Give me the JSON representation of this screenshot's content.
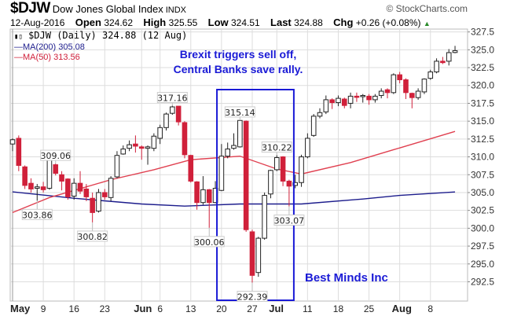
{
  "header": {
    "symbol": "$DJW",
    "name": "Dow Jones Global Index",
    "exchange": "INDX",
    "copyright": "© StockCharts.com",
    "date": "12-Aug-2016",
    "open_label": "Open",
    "open": "324.62",
    "high_label": "High",
    "high": "325.55",
    "low_label": "Low",
    "low": "324.51",
    "last_label": "Last",
    "last": "324.88",
    "chg_label": "Chg",
    "chg": "+0.26 (+0.08%)",
    "up_icon": "▲"
  },
  "legend": {
    "price": "$DJW (Daily) 324.88 (12 Aug)",
    "ma200": "MA(200) 305.08",
    "ma50": "MA(50) 313.56"
  },
  "annotations": {
    "line1": "Brexit triggers sell off,",
    "line2": "Central Banks save rally.",
    "watermark": "Best Minds Inc"
  },
  "colors": {
    "up": "#ffffff",
    "down": "#d0203a",
    "ma200": "#1c1c8c",
    "ma50": "#e04050",
    "box": "#1a1ad6",
    "grid": "#dddddd"
  },
  "chart_data": {
    "type": "candlestick",
    "ylim": [
      289.8,
      327.9
    ],
    "yticks": [
      "292.5",
      "295.0",
      "297.5",
      "300.0",
      "302.5",
      "305.0",
      "307.5",
      "310.0",
      "312.5",
      "315.0",
      "317.5",
      "320.0",
      "322.5",
      "325.0",
      "327.5"
    ],
    "xticks": [
      {
        "label": "May",
        "date": "2016-05-02",
        "bold": true
      },
      {
        "label": "9",
        "date": "2016-05-09"
      },
      {
        "label": "16",
        "date": "2016-05-16"
      },
      {
        "label": "23",
        "date": "2016-05-23"
      },
      {
        "label": "Jun",
        "date": "2016-06-01",
        "bold": true
      },
      {
        "label": "6",
        "date": "2016-06-06"
      },
      {
        "label": "13",
        "date": "2016-06-13"
      },
      {
        "label": "20",
        "date": "2016-06-20"
      },
      {
        "label": "27",
        "date": "2016-06-27"
      },
      {
        "label": "Jul",
        "date": "2016-07-01",
        "bold": true
      },
      {
        "label": "11",
        "date": "2016-07-11"
      },
      {
        "label": "18",
        "date": "2016-07-18"
      },
      {
        "label": "25",
        "date": "2016-07-25"
      },
      {
        "label": "Aug",
        "date": "2016-08-01",
        "bold": true
      },
      {
        "label": "8",
        "date": "2016-08-08"
      }
    ],
    "candles": [
      [
        "2016-05-02",
        311.8,
        312.6,
        310.8,
        312.4
      ],
      [
        "2016-05-03",
        312.6,
        313,
        308,
        308.8
      ],
      [
        "2016-05-04",
        308.6,
        308.8,
        305.5,
        306
      ],
      [
        "2016-05-05",
        306.3,
        307,
        305,
        305.5
      ],
      [
        "2016-05-06",
        305.6,
        306.2,
        303.86,
        305.8
      ],
      [
        "2016-05-09",
        305.8,
        306.5,
        305,
        305.4
      ],
      [
        "2016-05-10",
        305.6,
        310,
        305.4,
        309.8
      ],
      [
        "2016-05-11",
        308.9,
        309.06,
        307.4,
        307.7
      ],
      [
        "2016-05-12",
        307.5,
        308,
        305.3,
        306.6
      ],
      [
        "2016-05-13",
        306.9,
        307,
        304,
        304.4
      ],
      [
        "2016-05-16",
        304.5,
        307,
        304,
        306.3
      ],
      [
        "2016-05-17",
        306.3,
        308,
        304.8,
        305.2
      ],
      [
        "2016-05-18",
        305.5,
        306.2,
        303.8,
        304.4
      ],
      [
        "2016-05-19",
        304.2,
        305,
        300.82,
        302.2
      ],
      [
        "2016-05-20",
        302.4,
        305.5,
        302.2,
        305
      ],
      [
        "2016-05-23",
        305,
        305.5,
        304,
        304.4
      ],
      [
        "2016-05-24",
        304.3,
        307.3,
        303.8,
        307
      ],
      [
        "2016-05-25",
        307.2,
        310.8,
        307,
        310.2
      ],
      [
        "2016-05-26",
        310.4,
        311.6,
        310.3,
        311.1
      ],
      [
        "2016-05-27",
        311.2,
        312.3,
        310.8,
        311.7
      ],
      [
        "2016-05-31",
        311.8,
        313,
        310.6,
        311.5
      ],
      [
        "2016-06-01",
        311.4,
        311.6,
        309.6,
        311.2
      ],
      [
        "2016-06-02",
        311.2,
        311.6,
        308.9,
        311.4
      ],
      [
        "2016-06-03",
        311.2,
        313.3,
        310.8,
        312.9
      ],
      [
        "2016-06-06",
        312.6,
        314.5,
        311.8,
        314.1
      ],
      [
        "2016-06-07",
        314.1,
        316.2,
        313.7,
        316
      ],
      [
        "2016-06-08",
        316.1,
        317.16,
        315.9,
        317
      ],
      [
        "2016-06-09",
        317.1,
        317.1,
        314.4,
        314.9
      ],
      [
        "2016-06-10",
        314.8,
        315,
        309.8,
        310.3
      ],
      [
        "2016-06-13",
        310.2,
        310.3,
        306.4,
        306.6
      ],
      [
        "2016-06-14",
        306.5,
        306.6,
        302.6,
        303.6
      ],
      [
        "2016-06-15",
        303.6,
        307.3,
        303.3,
        305.4
      ],
      [
        "2016-06-16",
        305.4,
        305.5,
        300.06,
        303.6
      ],
      [
        "2016-06-17",
        303.6,
        306.6,
        303.5,
        305.6
      ],
      [
        "2016-06-20",
        305.3,
        311.8,
        305.2,
        310.1
      ],
      [
        "2016-06-21",
        310.1,
        312,
        309.8,
        311.1
      ],
      [
        "2016-06-22",
        311.2,
        313.3,
        311,
        311.6
      ],
      [
        "2016-06-23",
        311.4,
        315.14,
        311.3,
        315.1
      ],
      [
        "2016-06-24",
        315,
        315.1,
        299.5,
        299.8
      ],
      [
        "2016-06-27",
        299.5,
        299.8,
        292.39,
        293.4
      ],
      [
        "2016-06-28",
        293.8,
        298.8,
        293.2,
        298.6
      ],
      [
        "2016-06-29",
        298.6,
        305,
        298.4,
        304.6
      ],
      [
        "2016-06-30",
        304.8,
        308.2,
        304.2,
        308.1
      ],
      [
        "2016-07-01",
        308.2,
        310.22,
        308,
        309.9
      ],
      [
        "2016-07-05",
        310,
        310.1,
        305.9,
        306.6
      ],
      [
        "2016-07-06",
        306.6,
        306.8,
        303.07,
        305.9
      ],
      [
        "2016-07-07",
        306,
        307.5,
        305.6,
        306.4
      ],
      [
        "2016-07-08",
        306.4,
        310.3,
        305.8,
        310
      ],
      [
        "2016-07-11",
        310,
        313.3,
        309.8,
        312.6
      ],
      [
        "2016-07-12",
        313,
        316,
        312.8,
        315.7
      ],
      [
        "2016-07-13",
        315.7,
        316.8,
        315.4,
        316.2
      ],
      [
        "2016-07-14",
        316.3,
        318.6,
        316,
        318
      ],
      [
        "2016-07-15",
        318,
        318.2,
        316.7,
        317.6
      ],
      [
        "2016-07-18",
        317.6,
        318.6,
        317.1,
        318.2
      ],
      [
        "2016-07-19",
        318.1,
        318.3,
        316.8,
        317.2
      ],
      [
        "2016-07-20",
        317.5,
        319,
        316.8,
        318.5
      ],
      [
        "2016-07-21",
        318.5,
        319,
        317.7,
        318.4
      ],
      [
        "2016-07-22",
        318.6,
        318.8,
        317.6,
        318.6
      ],
      [
        "2016-07-25",
        318.5,
        318.8,
        317.3,
        318
      ],
      [
        "2016-07-26",
        318,
        318.8,
        317.6,
        318.5
      ],
      [
        "2016-07-27",
        318.6,
        319.6,
        318.2,
        319.2
      ],
      [
        "2016-07-28",
        319.4,
        319.6,
        318.2,
        319
      ],
      [
        "2016-07-29",
        319,
        321.7,
        318.8,
        321.5
      ],
      [
        "2016-08-01",
        321.5,
        321.9,
        320.3,
        320.8
      ],
      [
        "2016-08-02",
        320.8,
        321,
        318.1,
        319
      ],
      [
        "2016-08-03",
        318.9,
        319,
        316.8,
        318.3
      ],
      [
        "2016-08-04",
        318.3,
        319.6,
        318,
        319.2
      ],
      [
        "2016-08-05",
        319.1,
        321,
        318.8,
        320.9
      ],
      [
        "2016-08-08",
        321,
        322.2,
        320.8,
        321.9
      ],
      [
        "2016-08-09",
        321.9,
        323.8,
        321.7,
        323.4
      ],
      [
        "2016-08-10",
        323.4,
        324,
        323,
        323.2
      ],
      [
        "2016-08-11",
        323.4,
        325.1,
        322.8,
        324.6
      ],
      [
        "2016-08-12",
        324.62,
        325.55,
        324.51,
        324.88
      ]
    ],
    "ma200": [
      [
        "2016-05-02",
        305.1
      ],
      [
        "2016-05-16",
        304.2
      ],
      [
        "2016-06-01",
        303.4
      ],
      [
        "2016-06-10",
        303.1
      ],
      [
        "2016-06-23",
        303.4
      ],
      [
        "2016-07-08",
        303.4
      ],
      [
        "2016-07-22",
        304.1
      ],
      [
        "2016-08-01",
        304.6
      ],
      [
        "2016-08-12",
        305.08
      ]
    ],
    "ma50": [
      [
        "2016-05-02",
        302.2
      ],
      [
        "2016-05-10",
        304.3
      ],
      [
        "2016-05-24",
        306.8
      ],
      [
        "2016-06-03",
        308.2
      ],
      [
        "2016-06-13",
        309.6
      ],
      [
        "2016-06-23",
        310.1
      ],
      [
        "2016-07-01",
        308.3
      ],
      [
        "2016-07-08",
        307.6
      ],
      [
        "2016-07-20",
        309.2
      ],
      [
        "2016-07-29",
        311
      ],
      [
        "2016-08-12",
        313.56
      ]
    ],
    "point_labels": [
      {
        "date": "2016-05-06",
        "value": "303.86",
        "pos": "below"
      },
      {
        "date": "2016-05-11",
        "value": "309.06",
        "pos": "above"
      },
      {
        "date": "2016-05-19",
        "value": "300.82",
        "pos": "below"
      },
      {
        "date": "2016-06-08",
        "value": "317.16",
        "pos": "above"
      },
      {
        "date": "2016-06-16",
        "value": "300.06",
        "pos": "below"
      },
      {
        "date": "2016-06-23",
        "value": "315.14",
        "pos": "above"
      },
      {
        "date": "2016-06-27",
        "value": "292.39",
        "pos": "below"
      },
      {
        "date": "2016-07-01",
        "value": "310.22",
        "pos": "above"
      },
      {
        "date": "2016-07-06",
        "value": "303.07",
        "pos": "below"
      }
    ],
    "highlight_range": [
      "2016-06-17",
      "2016-07-06"
    ],
    "grid": true
  }
}
